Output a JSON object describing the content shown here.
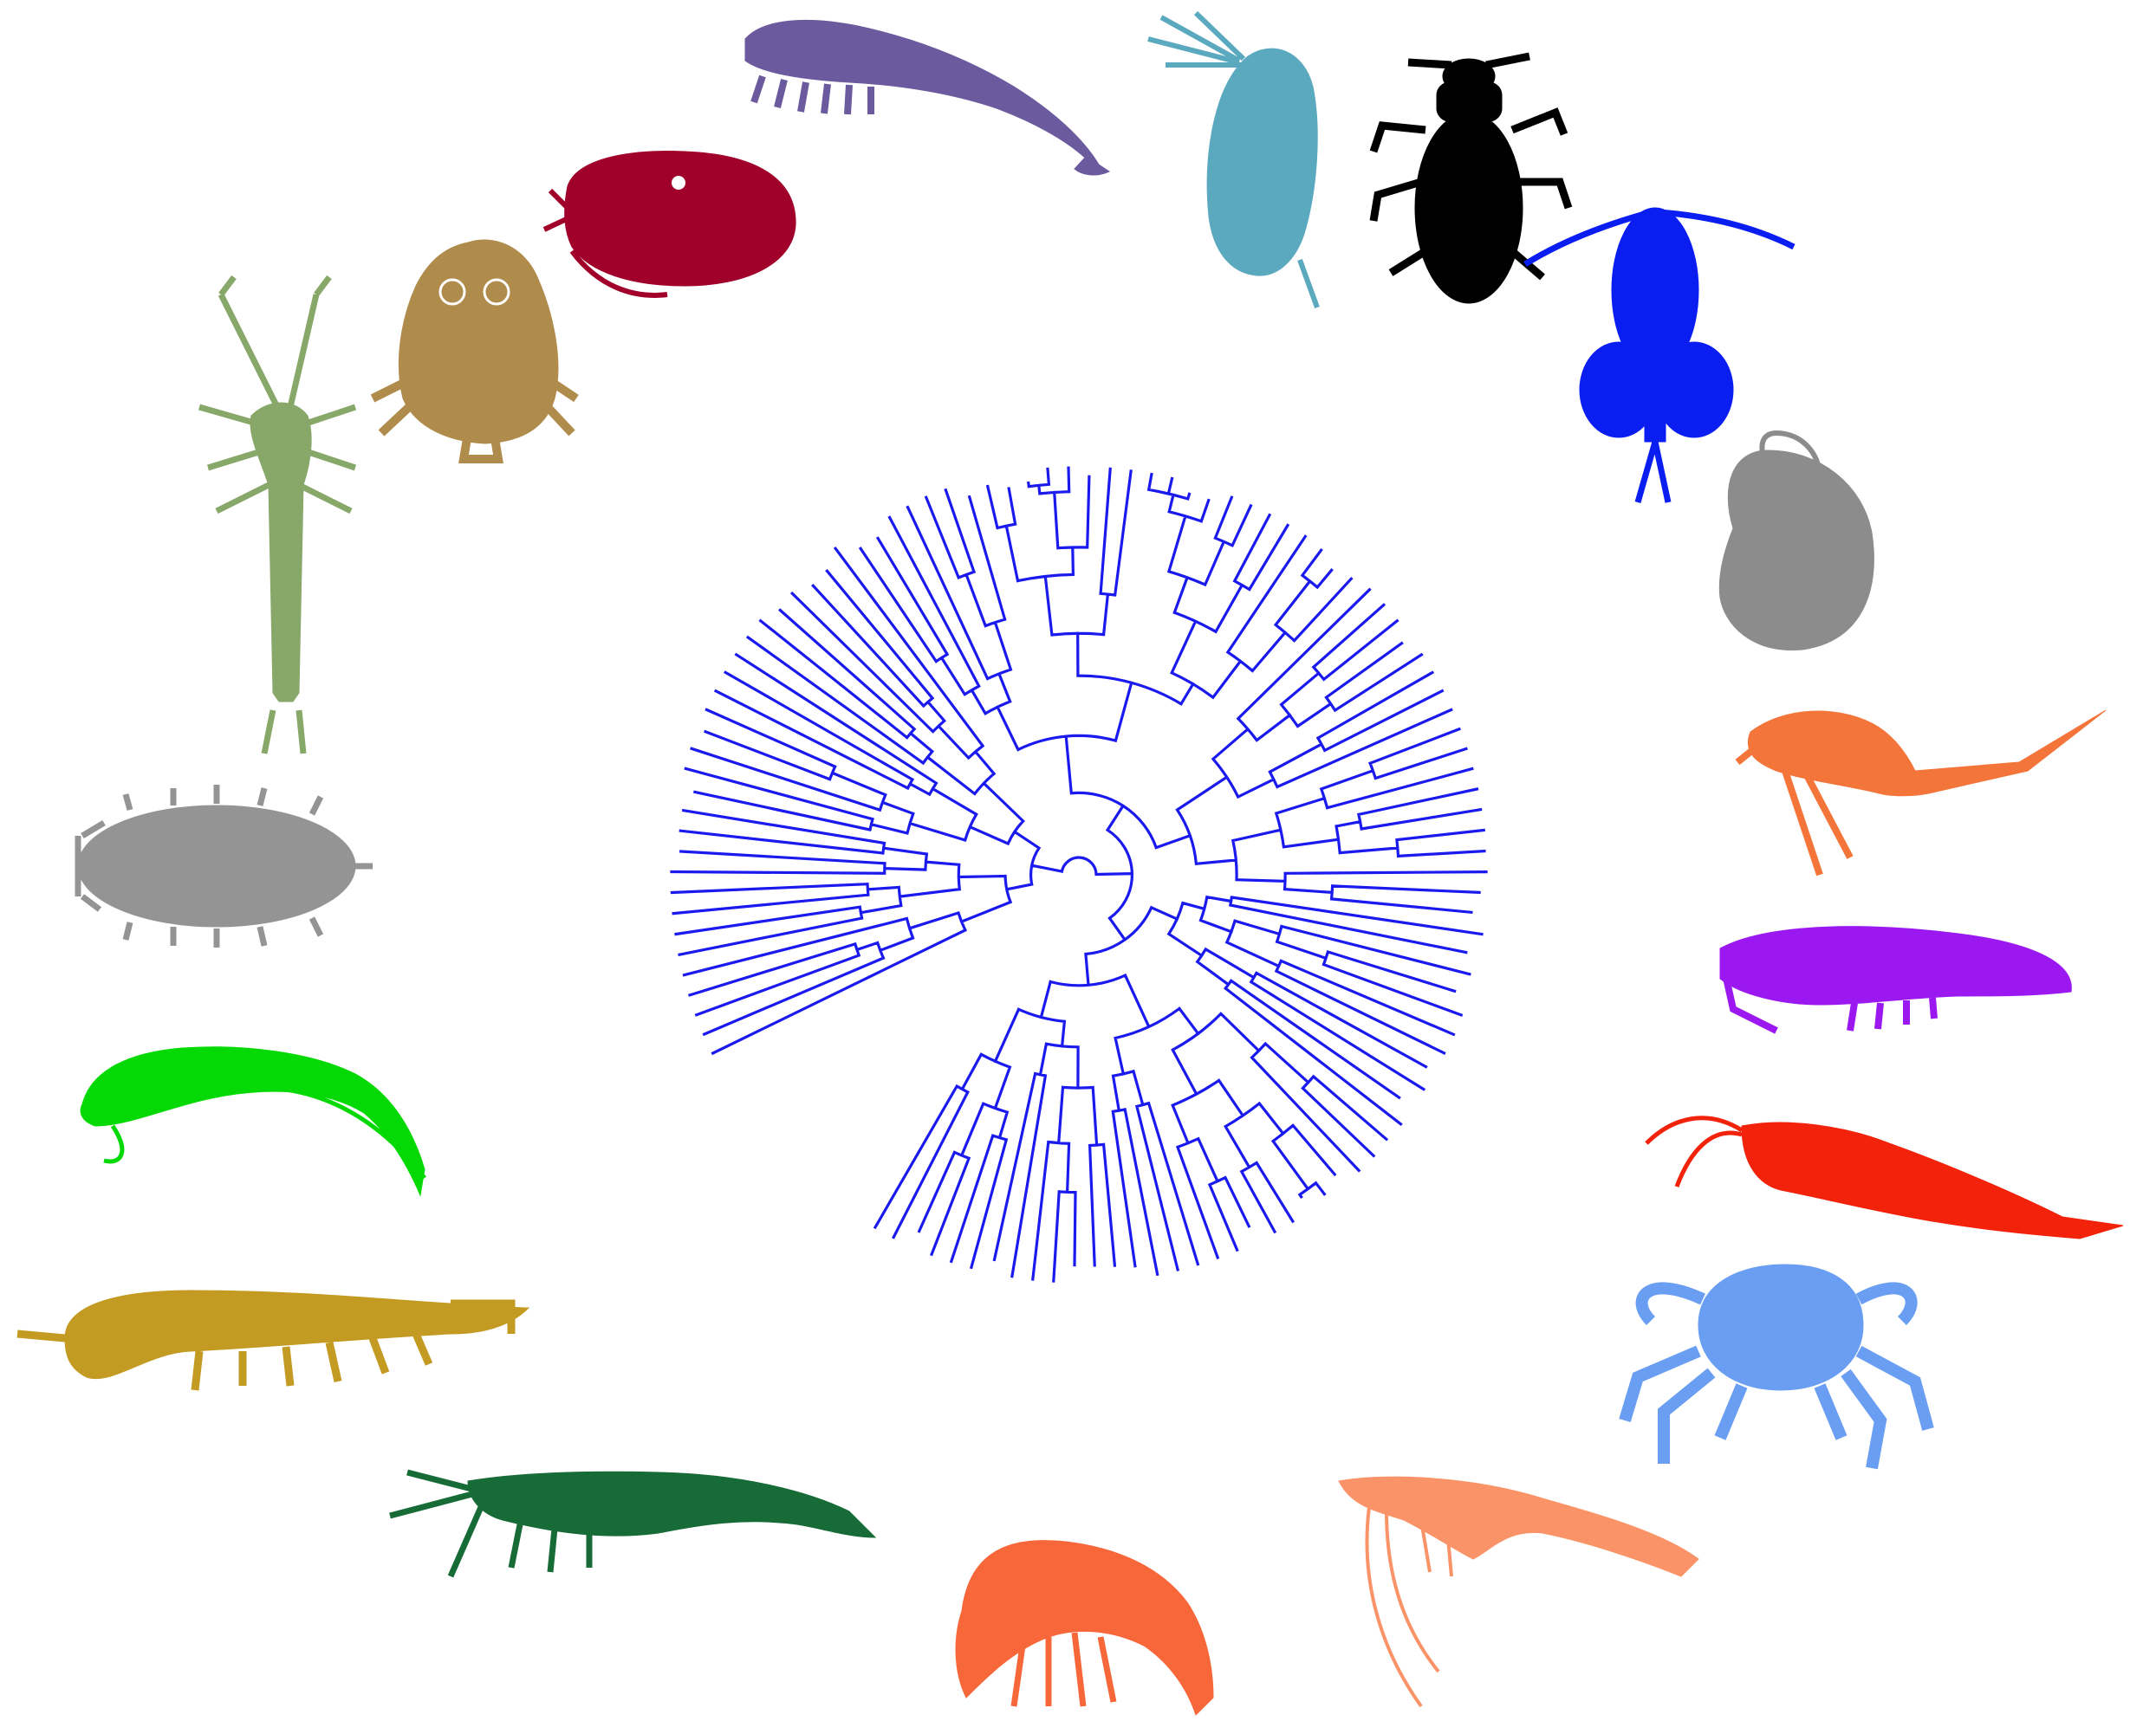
{
  "figure": {
    "tree_color": "#1a1aee",
    "leaf_count": 112
  },
  "silhouettes": [
    {
      "name": "amphipod-purple-grey",
      "color": "#6b5a9e"
    },
    {
      "name": "cladoceran",
      "color": "#5aa9bf"
    },
    {
      "name": "beetle",
      "color": "#000000"
    },
    {
      "name": "copepod-blue",
      "color": "#0a1ef2"
    },
    {
      "name": "barnacle",
      "color": "#8c8c8c"
    },
    {
      "name": "cumacean",
      "color": "#f4753a"
    },
    {
      "name": "amphipod-violet",
      "color": "#9b19f0"
    },
    {
      "name": "krill",
      "color": "#f2220b"
    },
    {
      "name": "crab",
      "color": "#6a9ef2"
    },
    {
      "name": "prawn-salmon",
      "color": "#fa9468"
    },
    {
      "name": "amphipod-orange",
      "color": "#f8673a"
    },
    {
      "name": "shrimp-green",
      "color": "#176b36"
    },
    {
      "name": "tanaid",
      "color": "#c39a22"
    },
    {
      "name": "mysid",
      "color": "#05d905"
    },
    {
      "name": "isopod",
      "color": "#949494"
    },
    {
      "name": "copepod-sage",
      "color": "#88a86a"
    },
    {
      "name": "fish-louse",
      "color": "#b08c4c"
    },
    {
      "name": "ostracod",
      "color": "#a0002a"
    }
  ]
}
